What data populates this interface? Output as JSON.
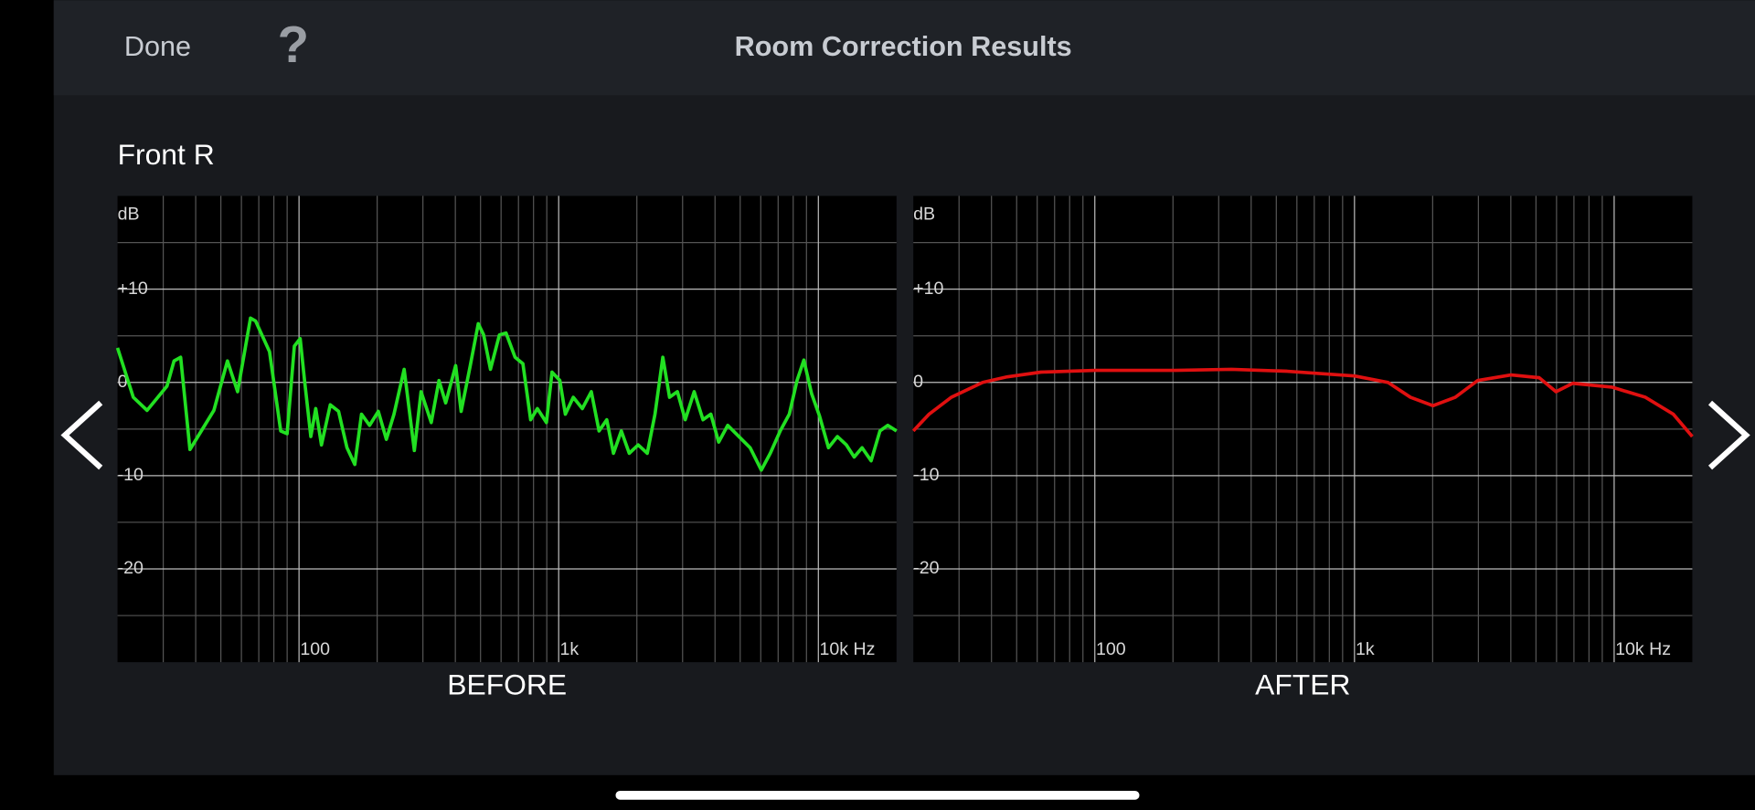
{
  "header": {
    "done": "Done",
    "help": "?",
    "title": "Room Correction Results"
  },
  "channel": "Front R",
  "chart_data": [
    {
      "type": "line",
      "title": "BEFORE",
      "y_unit": "dB",
      "xscale": "log",
      "grid": true,
      "x": [
        20,
        23,
        26,
        31,
        33,
        35,
        38,
        47,
        53,
        58,
        65,
        68,
        77,
        85,
        90,
        96,
        101,
        105,
        111,
        116,
        122,
        132,
        142,
        153,
        164,
        174,
        187,
        202,
        217,
        232,
        254,
        278,
        295,
        323,
        346,
        367,
        401,
        421,
        456,
        490,
        514,
        546,
        591,
        627,
        679,
        728,
        780,
        828,
        897,
        943,
        1010,
        1061,
        1138,
        1233,
        1335,
        1430,
        1532,
        1626,
        1742,
        1870,
        2024,
        2193,
        2350,
        2518,
        2673,
        2866,
        3071,
        3325,
        3597,
        3855,
        4130,
        4478,
        4943,
        5459,
        6029,
        6531,
        7135,
        7726,
        8280,
        8790,
        9418,
        10100,
        10940,
        11840,
        12820,
        13740,
        14730,
        15960,
        17270,
        18510,
        20000
      ],
      "series": [
        {
          "color": "#22e022",
          "values": [
            3.7,
            -1.6,
            -3.0,
            -0.4,
            2.3,
            2.7,
            -7.2,
            -3.0,
            2.3,
            -1.0,
            6.9,
            6.6,
            3.3,
            -5.2,
            -5.5,
            3.9,
            4.7,
            0.2,
            -5.8,
            -2.8,
            -6.7,
            -2.4,
            -3.1,
            -7.0,
            -8.8,
            -3.4,
            -4.6,
            -3.1,
            -6.1,
            -3.4,
            1.4,
            -7.3,
            -1.0,
            -4.3,
            0.2,
            -2.2,
            1.8,
            -3.1,
            1.7,
            6.3,
            5.1,
            1.4,
            5.1,
            5.3,
            2.7,
            2.0,
            -4.0,
            -2.8,
            -4.3,
            1.1,
            0.2,
            -3.4,
            -1.6,
            -2.8,
            -1.0,
            -5.2,
            -4.0,
            -7.6,
            -5.2,
            -7.6,
            -6.7,
            -7.6,
            -3.4,
            2.7,
            -1.6,
            -1.0,
            -4.0,
            -1.0,
            -4.0,
            -3.4,
            -6.4,
            -4.6,
            -5.8,
            -7.0,
            -9.4,
            -7.6,
            -5.2,
            -3.4,
            0.2,
            2.4,
            -1.2,
            -3.6,
            -7.0,
            -5.8,
            -6.7,
            -8.0,
            -7.0,
            -8.4,
            -5.2,
            -4.6,
            -5.2
          ]
        }
      ],
      "xlim": [
        20,
        20000
      ],
      "xticks": [
        100,
        {
          "value": 1000,
          "label": "1k"
        },
        {
          "value": 10000,
          "label": "10k Hz"
        }
      ],
      "minor_xticks": [
        30,
        40,
        50,
        60,
        70,
        80,
        90,
        200,
        300,
        400,
        500,
        600,
        700,
        800,
        900,
        2000,
        3000,
        4000,
        5000,
        6000,
        7000,
        8000,
        9000
      ],
      "ylim": [
        -30,
        20
      ],
      "yticks": [
        {
          "value": 10,
          "label": "+10"
        },
        0,
        -10,
        -20
      ],
      "minor_yticks": [
        15,
        5,
        -5,
        -15,
        -25
      ]
    },
    {
      "type": "line",
      "title": "AFTER",
      "y_unit": "dB",
      "xscale": "log",
      "grid": true,
      "x": [
        20,
        23,
        28,
        37,
        46,
        62,
        100,
        204,
        336,
        551,
        1000,
        1346,
        1643,
        2006,
        2445,
        2981,
        4012,
        5143,
        5970,
        6930,
        9800,
        13200,
        16900,
        20000
      ],
      "series": [
        {
          "color": "#e01010",
          "values": [
            -5.2,
            -3.4,
            -1.6,
            0,
            0.6,
            1.1,
            1.3,
            1.3,
            1.4,
            1.2,
            0.7,
            0,
            -1.6,
            -2.5,
            -1.6,
            0.2,
            0.8,
            0.5,
            -1.0,
            -0.1,
            -0.5,
            -1.6,
            -3.4,
            -5.8
          ]
        }
      ],
      "xlim": [
        20,
        20000
      ],
      "xticks": [
        100,
        {
          "value": 1000,
          "label": "1k"
        },
        {
          "value": 10000,
          "label": "10k Hz"
        }
      ],
      "minor_xticks": [
        30,
        40,
        50,
        60,
        70,
        80,
        90,
        200,
        300,
        400,
        500,
        600,
        700,
        800,
        900,
        2000,
        3000,
        4000,
        5000,
        6000,
        7000,
        8000,
        9000
      ],
      "ylim": [
        -30,
        20
      ],
      "yticks": [
        {
          "value": 10,
          "label": "+10"
        },
        0,
        -10,
        -20
      ],
      "minor_yticks": [
        15,
        5,
        -5,
        -15,
        -25
      ]
    }
  ]
}
